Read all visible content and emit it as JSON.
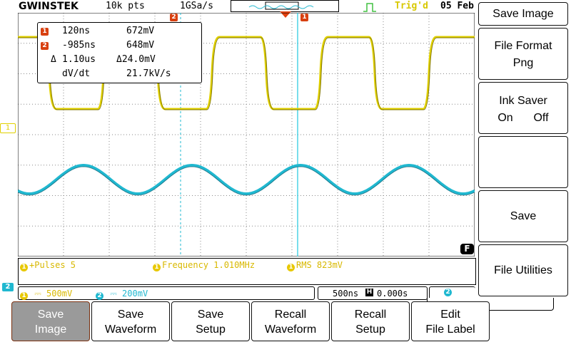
{
  "top_bar": {
    "brand": "GWINSTEK",
    "record_length": "10k pts",
    "sample_rate": "1GSa/s",
    "trigger_status": "Trig'd",
    "date": "05 Feb",
    "cursor2_marker": "2",
    "cursor1_marker": "1"
  },
  "colors": {
    "ch1": "#e0d000",
    "ch2": "#20b8d0",
    "cursor_marker": "#d84010",
    "trigger_status": "#d8c800"
  },
  "channel_markers": {
    "ch1": "1",
    "ch2": "2"
  },
  "cursor_readout": {
    "rows": [
      {
        "label": "1",
        "time": "120ns",
        "value": "672mV"
      },
      {
        "label": "2",
        "time": "-985ns",
        "value": "648mV"
      },
      {
        "label": "Δ",
        "time": "1.10us",
        "value": "Δ24.0mV"
      },
      {
        "label": "",
        "time": "dV/dt",
        "value": "21.7kV/s"
      }
    ]
  },
  "measurements": [
    {
      "channel": "1",
      "text": "+Pulses 5"
    },
    {
      "channel": "1",
      "text": "Frequency 1.010MHz"
    },
    {
      "channel": "1",
      "text": "RMS 823mV"
    }
  ],
  "channel_info": {
    "ch1_label": "1",
    "ch1_scale": "500mV",
    "ch2_label": "2",
    "ch2_scale": "200mV",
    "timebase": "500ns",
    "horizontal_position": "0.000s",
    "trigger_source": "2",
    "f_badge": "F"
  },
  "side_menu": {
    "title": "Save Image",
    "file_format_label": "File Format",
    "file_format_value": "Png",
    "ink_saver_label": "Ink Saver",
    "ink_saver_on": "On",
    "ink_saver_off": "Off",
    "save_label": "Save",
    "file_utilities_label": "File Utilities"
  },
  "bottom_menu": [
    {
      "line1": "Save",
      "line2": "Image",
      "active": true
    },
    {
      "line1": "Save",
      "line2": "Waveform",
      "active": false
    },
    {
      "line1": "Save",
      "line2": "Setup",
      "active": false
    },
    {
      "line1": "Recall",
      "line2": "Waveform",
      "active": false
    },
    {
      "line1": "Recall",
      "line2": "Setup",
      "active": false
    },
    {
      "line1": "Edit",
      "line2": "File Label",
      "active": false
    }
  ]
}
